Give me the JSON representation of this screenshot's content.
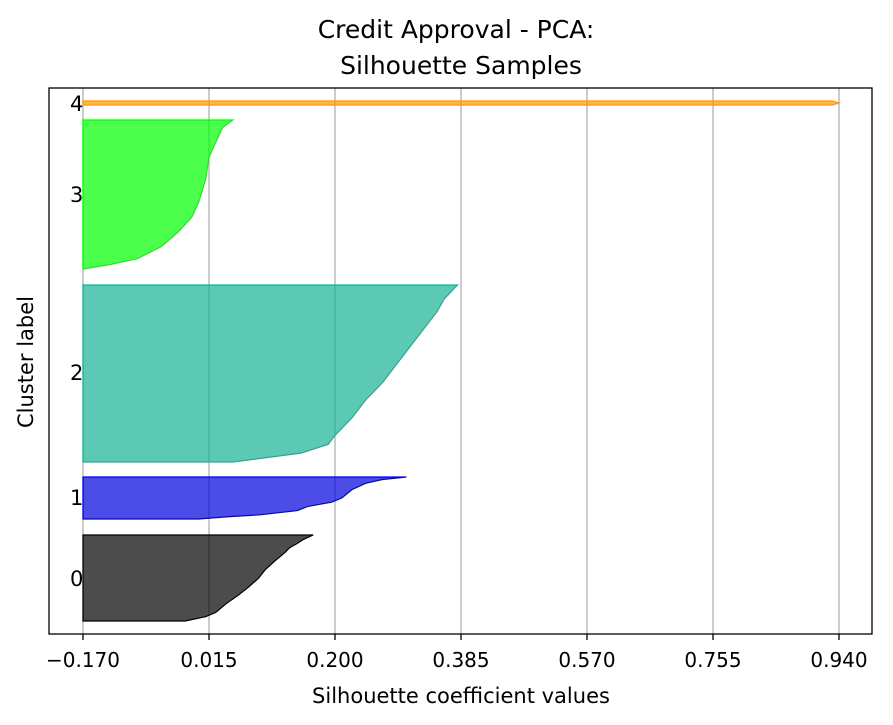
{
  "chart_data": {
    "type": "area",
    "title_line1": "Credit Approval - PCA:",
    "title_line2": "Silhouette Samples",
    "xlabel": "Silhouette coefficient values",
    "ylabel": "Cluster label",
    "xlim": [
      -0.22,
      0.99
    ],
    "x_ticks": [
      -0.17,
      0.015,
      0.2,
      0.385,
      0.57,
      0.755,
      0.94
    ],
    "x_tick_labels": [
      "−0.170",
      "0.015",
      "0.200",
      "0.385",
      "0.570",
      "0.755",
      "0.940"
    ],
    "grid": "vertical",
    "clusters": [
      {
        "label": "0",
        "color": "#000000",
        "profile": [
          [
            0.0,
            0.168
          ],
          [
            0.05,
            0.154
          ],
          [
            0.1,
            0.144
          ],
          [
            0.15,
            0.133
          ],
          [
            0.2,
            0.127
          ],
          [
            0.3,
            0.112
          ],
          [
            0.4,
            0.098
          ],
          [
            0.5,
            0.088
          ],
          [
            0.6,
            0.074
          ],
          [
            0.7,
            0.058
          ],
          [
            0.8,
            0.04
          ],
          [
            0.9,
            0.025
          ],
          [
            0.95,
            0.01
          ],
          [
            1.0,
            -0.02
          ]
        ]
      },
      {
        "label": "1",
        "color": "#0000dd",
        "profile": [
          [
            0.0,
            0.305
          ],
          [
            0.06,
            0.27
          ],
          [
            0.15,
            0.245
          ],
          [
            0.3,
            0.225
          ],
          [
            0.5,
            0.21
          ],
          [
            0.6,
            0.195
          ],
          [
            0.7,
            0.16
          ],
          [
            0.8,
            0.145
          ],
          [
            0.9,
            0.09
          ],
          [
            0.95,
            0.04
          ],
          [
            1.0,
            0.0
          ]
        ]
      },
      {
        "label": "2",
        "color": "#17b294",
        "profile": [
          [
            0.0,
            0.38
          ],
          [
            0.02,
            0.375
          ],
          [
            0.08,
            0.36
          ],
          [
            0.15,
            0.35
          ],
          [
            0.25,
            0.33
          ],
          [
            0.35,
            0.31
          ],
          [
            0.45,
            0.29
          ],
          [
            0.55,
            0.27
          ],
          [
            0.65,
            0.245
          ],
          [
            0.75,
            0.225
          ],
          [
            0.85,
            0.2
          ],
          [
            0.9,
            0.19
          ],
          [
            0.95,
            0.15
          ],
          [
            1.0,
            0.05
          ]
        ]
      },
      {
        "label": "3",
        "color": "#00ff00",
        "profile": [
          [
            0.0,
            0.05
          ],
          [
            0.05,
            0.035
          ],
          [
            0.15,
            0.025
          ],
          [
            0.25,
            0.015
          ],
          [
            0.4,
            0.01
          ],
          [
            0.55,
            0.0
          ],
          [
            0.65,
            -0.01
          ],
          [
            0.75,
            -0.03
          ],
          [
            0.85,
            -0.055
          ],
          [
            0.93,
            -0.09
          ],
          [
            0.97,
            -0.13
          ],
          [
            1.0,
            -0.17
          ]
        ]
      },
      {
        "label": "4",
        "color": "#ff9800",
        "profile": [
          [
            0.0,
            0.93
          ],
          [
            0.5,
            0.94
          ],
          [
            1.0,
            0.93
          ]
        ]
      }
    ]
  }
}
